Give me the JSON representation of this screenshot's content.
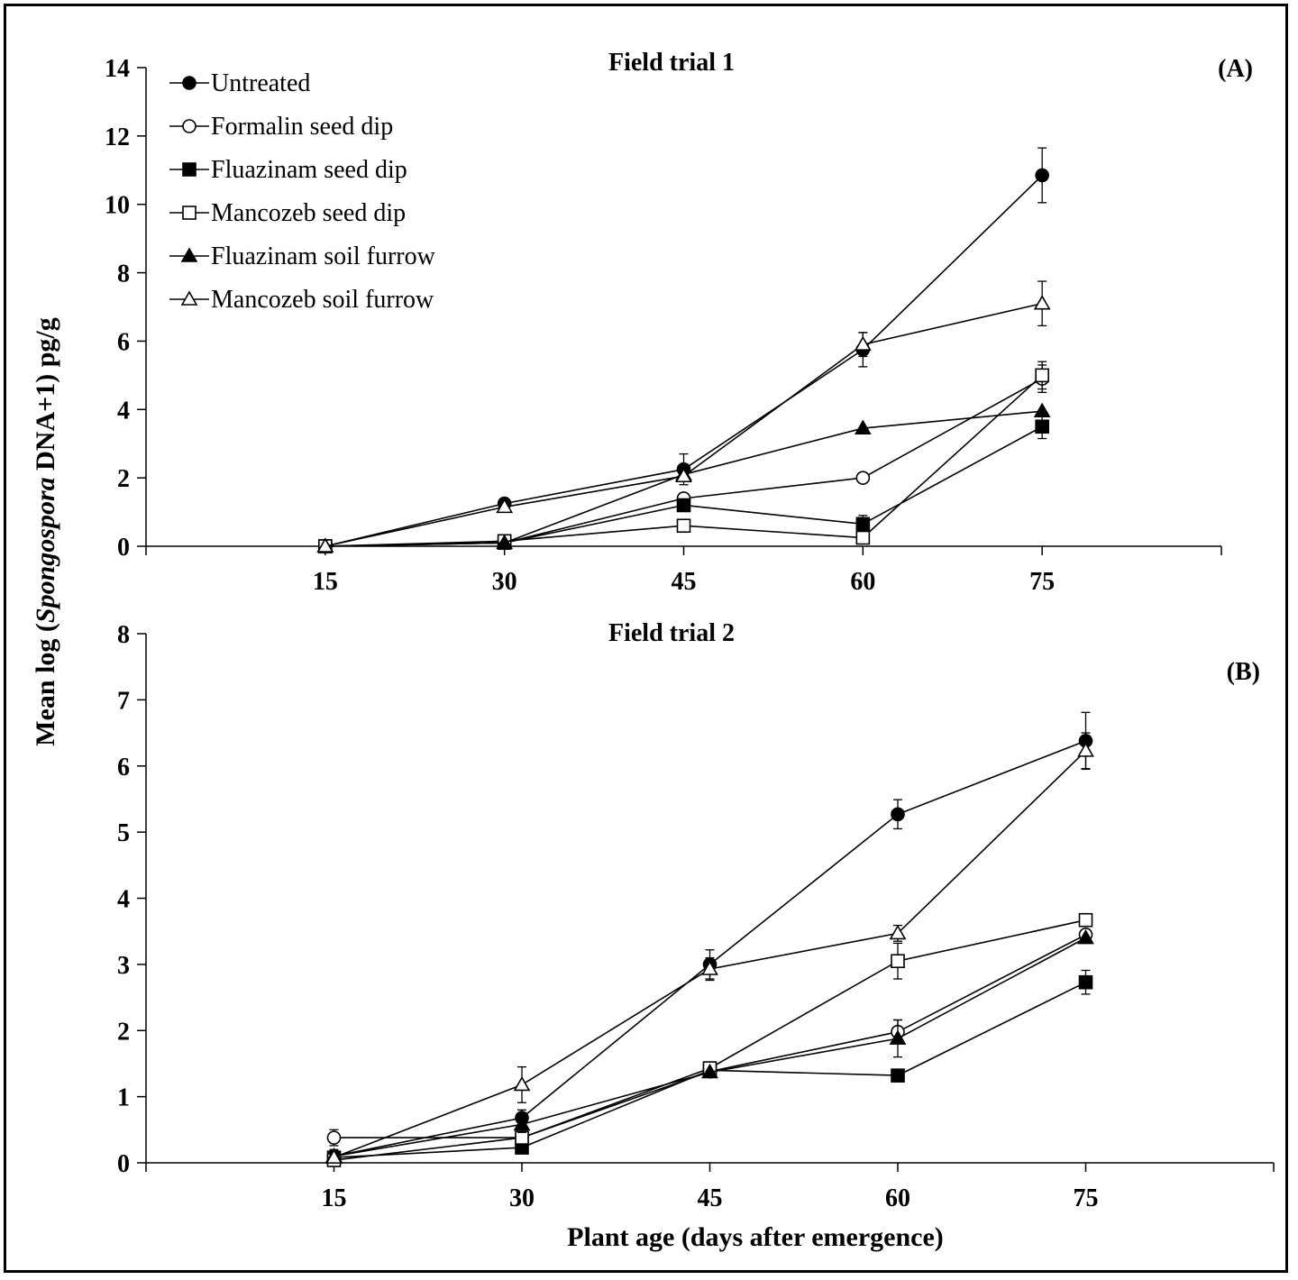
{
  "figure": {
    "ylabel_prefix": "Mean log  (",
    "ylabel_italic": "Spongospora",
    "ylabel_suffix": " DNA+1)  pg/g",
    "xlabel": "Plant age (days after emergence)"
  },
  "legend": {
    "entries": [
      {
        "label": "Untreated",
        "marker": "circle",
        "fill": "#000000"
      },
      {
        "label": "Formalin seed dip",
        "marker": "circle",
        "fill": "#ffffff"
      },
      {
        "label": "Fluazinam seed dip",
        "marker": "square",
        "fill": "#000000"
      },
      {
        "label": "Mancozeb seed dip",
        "marker": "square",
        "fill": "#ffffff"
      },
      {
        "label": "Fluazinam soil furrow",
        "marker": "triangle",
        "fill": "#000000"
      },
      {
        "label": "Mancozeb soil furrow",
        "marker": "triangle",
        "fill": "#ffffff"
      }
    ]
  },
  "chart_data": [
    {
      "type": "line",
      "panel_label": "(A)",
      "title": "Field trial 1",
      "x": [
        15,
        30,
        45,
        60,
        75
      ],
      "xlim": [
        0,
        90
      ],
      "ylim": [
        0,
        14
      ],
      "yticks": [
        0,
        2,
        4,
        6,
        8,
        10,
        12,
        14
      ],
      "xticklabels": [
        "15",
        "30",
        "45",
        "60",
        "75"
      ],
      "grid": false,
      "legend_position": "top-left",
      "series": [
        {
          "name": "Untreated",
          "values": [
            0,
            1.25,
            2.25,
            5.75,
            10.85
          ],
          "errors": [
            0,
            0,
            0.45,
            0.5,
            0.8
          ]
        },
        {
          "name": "Formalin seed dip",
          "values": [
            0,
            0.1,
            1.4,
            2.0,
            4.9
          ],
          "errors": [
            0,
            0,
            0,
            0,
            0.4
          ]
        },
        {
          "name": "Fluazinam seed dip",
          "values": [
            0,
            0.1,
            1.2,
            0.65,
            3.5
          ],
          "errors": [
            0,
            0,
            0,
            0.25,
            0.35
          ]
        },
        {
          "name": "Mancozeb seed dip",
          "values": [
            0,
            0.15,
            0.6,
            0.25,
            5.0
          ],
          "errors": [
            0,
            0,
            0,
            0,
            0.4
          ]
        },
        {
          "name": "Fluazinam soil furrow",
          "values": [
            0,
            0.1,
            2.1,
            3.45,
            3.95
          ],
          "errors": [
            0,
            0,
            0.2,
            0,
            0
          ]
        },
        {
          "name": "Mancozeb soil furrow",
          "values": [
            0,
            1.15,
            2.05,
            5.9,
            7.1
          ],
          "errors": [
            0,
            0,
            0,
            0.35,
            0.65
          ]
        }
      ]
    },
    {
      "type": "line",
      "panel_label": "(B)",
      "title": "Field trial 2",
      "x": [
        15,
        30,
        45,
        60,
        75
      ],
      "xlim": [
        0,
        90
      ],
      "ylim": [
        0,
        8
      ],
      "yticks": [
        0,
        1,
        2,
        3,
        4,
        5,
        6,
        7,
        8
      ],
      "xticklabels": [
        "15",
        "30",
        "45",
        "60",
        "75"
      ],
      "grid": false,
      "series": [
        {
          "name": "Untreated",
          "values": [
            0.1,
            0.68,
            3.0,
            5.27,
            6.38
          ],
          "errors": [
            0,
            0.12,
            0.22,
            0.22,
            0.43
          ]
        },
        {
          "name": "Formalin seed dip",
          "values": [
            0.38,
            0.38,
            1.38,
            1.98,
            3.45
          ],
          "errors": [
            0.12,
            0,
            0,
            0.18,
            0
          ]
        },
        {
          "name": "Fluazinam seed dip",
          "values": [
            0.08,
            0.23,
            1.4,
            1.32,
            2.73
          ],
          "errors": [
            0,
            0,
            0,
            0,
            0.18
          ]
        },
        {
          "name": "Mancozeb seed dip",
          "values": [
            0.04,
            0.38,
            1.43,
            3.05,
            3.67
          ],
          "errors": [
            0,
            0,
            0,
            0.27,
            0
          ]
        },
        {
          "name": "Fluazinam soil furrow",
          "values": [
            0.1,
            0.58,
            1.37,
            1.88,
            3.4
          ],
          "errors": [
            0.1,
            0.12,
            0,
            0.28,
            0
          ]
        },
        {
          "name": "Mancozeb soil furrow",
          "values": [
            0.08,
            1.18,
            2.93,
            3.47,
            6.23
          ],
          "errors": [
            0.08,
            0.27,
            0.17,
            0.12,
            0.27
          ]
        }
      ]
    }
  ]
}
